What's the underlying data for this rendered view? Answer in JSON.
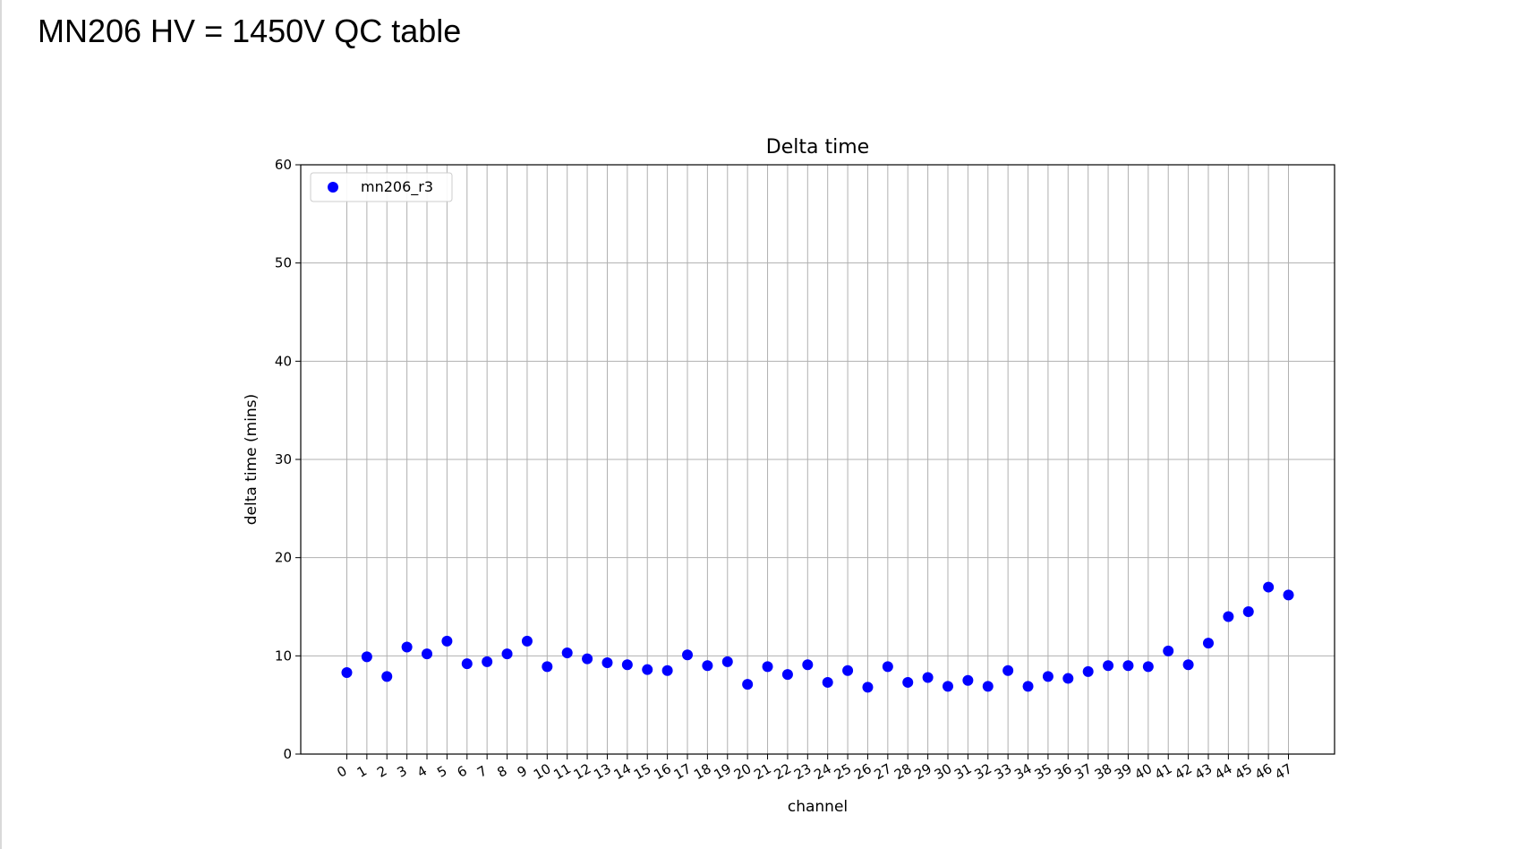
{
  "page_title": "MN206 HV = 1450V QC table",
  "chart_data": {
    "type": "scatter",
    "title": "Delta time",
    "xlabel": "channel",
    "ylabel": "delta time (mins)",
    "ylim": [
      0,
      60
    ],
    "yticks": [
      0,
      10,
      20,
      30,
      40,
      50,
      60
    ],
    "grid": true,
    "legend_position": "top-left",
    "point_color": "#0000ff",
    "series": [
      {
        "name": "mn206_r3",
        "x": [
          0,
          1,
          2,
          3,
          4,
          5,
          6,
          7,
          8,
          9,
          10,
          11,
          12,
          13,
          14,
          15,
          16,
          17,
          18,
          19,
          20,
          21,
          22,
          23,
          24,
          25,
          26,
          27,
          28,
          29,
          30,
          31,
          32,
          33,
          34,
          35,
          36,
          37,
          38,
          39,
          40,
          41,
          42,
          43,
          44,
          45,
          46,
          47
        ],
        "values": [
          8.3,
          9.9,
          7.9,
          10.9,
          10.2,
          11.5,
          9.2,
          9.4,
          10.2,
          11.5,
          8.9,
          10.3,
          9.7,
          9.3,
          9.1,
          8.6,
          8.5,
          10.1,
          9.0,
          9.4,
          7.1,
          8.9,
          8.1,
          9.1,
          7.3,
          8.5,
          6.8,
          8.9,
          7.3,
          7.8,
          6.9,
          7.5,
          6.9,
          8.5,
          6.9,
          7.9,
          7.7,
          8.4,
          9.0,
          9.0,
          8.9,
          10.5,
          9.1,
          11.3,
          14.0,
          14.5,
          17.0,
          16.2
        ]
      }
    ]
  }
}
